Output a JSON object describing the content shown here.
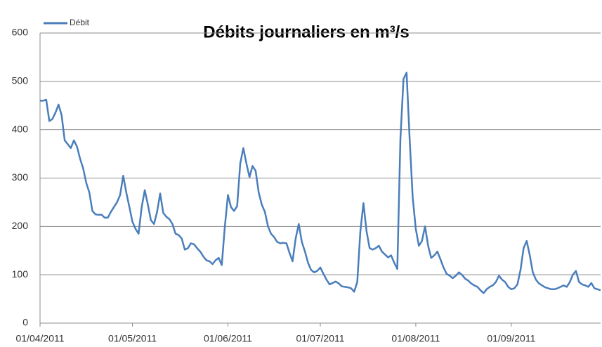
{
  "chart_data": {
    "type": "line",
    "title": "Débits journaliers en m³/s",
    "x": [
      "01/04/2011",
      "02/04/2011",
      "03/04/2011",
      "04/04/2011",
      "05/04/2011",
      "06/04/2011",
      "07/04/2011",
      "08/04/2011",
      "09/04/2011",
      "10/04/2011",
      "11/04/2011",
      "12/04/2011",
      "13/04/2011",
      "14/04/2011",
      "15/04/2011",
      "16/04/2011",
      "17/04/2011",
      "18/04/2011",
      "19/04/2011",
      "20/04/2011",
      "21/04/2011",
      "22/04/2011",
      "23/04/2011",
      "24/04/2011",
      "25/04/2011",
      "26/04/2011",
      "27/04/2011",
      "28/04/2011",
      "29/04/2011",
      "30/04/2011",
      "01/05/2011",
      "02/05/2011",
      "03/05/2011",
      "04/05/2011",
      "05/05/2011",
      "06/05/2011",
      "07/05/2011",
      "08/05/2011",
      "09/05/2011",
      "10/05/2011",
      "11/05/2011",
      "12/05/2011",
      "13/05/2011",
      "14/05/2011",
      "15/05/2011",
      "16/05/2011",
      "17/05/2011",
      "18/05/2011",
      "19/05/2011",
      "20/05/2011",
      "21/05/2011",
      "22/05/2011",
      "23/05/2011",
      "24/05/2011",
      "25/05/2011",
      "26/05/2011",
      "27/05/2011",
      "28/05/2011",
      "29/05/2011",
      "30/05/2011",
      "31/05/2011",
      "01/06/2011",
      "02/06/2011",
      "03/06/2011",
      "04/06/2011",
      "05/06/2011",
      "06/06/2011",
      "07/06/2011",
      "08/06/2011",
      "09/06/2011",
      "10/06/2011",
      "11/06/2011",
      "12/06/2011",
      "13/06/2011",
      "14/06/2011",
      "15/06/2011",
      "16/06/2011",
      "17/06/2011",
      "18/06/2011",
      "19/06/2011",
      "20/06/2011",
      "21/06/2011",
      "22/06/2011",
      "23/06/2011",
      "24/06/2011",
      "25/06/2011",
      "26/06/2011",
      "27/06/2011",
      "28/06/2011",
      "29/06/2011",
      "30/06/2011",
      "01/07/2011",
      "02/07/2011",
      "03/07/2011",
      "04/07/2011",
      "05/07/2011",
      "06/07/2011",
      "07/07/2011",
      "08/07/2011",
      "09/07/2011",
      "10/07/2011",
      "11/07/2011",
      "12/07/2011",
      "13/07/2011",
      "14/07/2011",
      "15/07/2011",
      "16/07/2011",
      "17/07/2011",
      "18/07/2011",
      "19/07/2011",
      "20/07/2011",
      "21/07/2011",
      "22/07/2011",
      "23/07/2011",
      "24/07/2011",
      "25/07/2011",
      "26/07/2011",
      "27/07/2011",
      "28/07/2011",
      "29/07/2011",
      "30/07/2011",
      "31/07/2011",
      "01/08/2011",
      "02/08/2011",
      "03/08/2011",
      "04/08/2011",
      "05/08/2011",
      "06/08/2011",
      "07/08/2011",
      "08/08/2011",
      "09/08/2011",
      "10/08/2011",
      "11/08/2011",
      "12/08/2011",
      "13/08/2011",
      "14/08/2011",
      "15/08/2011",
      "16/08/2011",
      "17/08/2011",
      "18/08/2011",
      "19/08/2011",
      "20/08/2011",
      "21/08/2011",
      "22/08/2011",
      "23/08/2011",
      "24/08/2011",
      "25/08/2011",
      "26/08/2011",
      "27/08/2011",
      "28/08/2011",
      "29/08/2011",
      "30/08/2011",
      "31/08/2011",
      "01/09/2011",
      "02/09/2011",
      "03/09/2011",
      "04/09/2011",
      "05/09/2011",
      "06/09/2011",
      "07/09/2011",
      "08/09/2011",
      "09/09/2011",
      "10/09/2011",
      "11/09/2011",
      "12/09/2011",
      "13/09/2011",
      "14/09/2011",
      "15/09/2011",
      "16/09/2011",
      "17/09/2011",
      "18/09/2011",
      "19/09/2011",
      "20/09/2011",
      "21/09/2011",
      "22/09/2011",
      "23/09/2011",
      "24/09/2011",
      "25/09/2011",
      "26/09/2011",
      "27/09/2011",
      "28/09/2011",
      "29/09/2011",
      "30/09/2011"
    ],
    "series": [
      {
        "name": "Débit",
        "color": "#4a7ebb",
        "values": [
          460,
          460,
          462,
          418,
          422,
          435,
          452,
          430,
          378,
          370,
          362,
          378,
          365,
          340,
          320,
          290,
          270,
          232,
          225,
          224,
          224,
          218,
          218,
          230,
          240,
          250,
          265,
          305,
          270,
          240,
          210,
          195,
          185,
          240,
          275,
          245,
          213,
          205,
          230,
          268,
          228,
          220,
          215,
          205,
          185,
          182,
          175,
          152,
          155,
          165,
          163,
          155,
          148,
          138,
          130,
          128,
          122,
          130,
          135,
          120,
          200,
          265,
          240,
          232,
          242,
          330,
          362,
          330,
          302,
          325,
          315,
          270,
          245,
          230,
          200,
          185,
          178,
          168,
          165,
          166,
          165,
          145,
          128,
          175,
          205,
          168,
          148,
          125,
          110,
          105,
          108,
          115,
          102,
          90,
          80,
          83,
          86,
          82,
          76,
          75,
          74,
          72,
          65,
          85,
          190,
          248,
          190,
          155,
          152,
          155,
          160,
          148,
          142,
          136,
          140,
          125,
          112,
          380,
          505,
          518,
          380,
          260,
          195,
          160,
          170,
          200,
          160,
          135,
          140,
          148,
          132,
          115,
          102,
          98,
          93,
          98,
          105,
          100,
          92,
          88,
          82,
          78,
          75,
          68,
          62,
          70,
          75,
          78,
          85,
          98,
          90,
          85,
          75,
          70,
          72,
          80,
          110,
          155,
          170,
          140,
          105,
          90,
          82,
          78,
          74,
          72,
          70,
          70,
          72,
          75,
          78,
          75,
          85,
          100,
          108,
          85,
          80,
          78,
          75,
          83,
          72,
          70,
          68
        ]
      }
    ],
    "xticks": [
      "01/04/2011",
      "01/05/2011",
      "01/06/2011",
      "01/07/2011",
      "01/08/2011",
      "01/09/2011"
    ],
    "ylim": [
      0,
      600
    ],
    "yticks": [
      0,
      100,
      200,
      300,
      400,
      500,
      600
    ],
    "grid": true,
    "legend": "top-left"
  }
}
